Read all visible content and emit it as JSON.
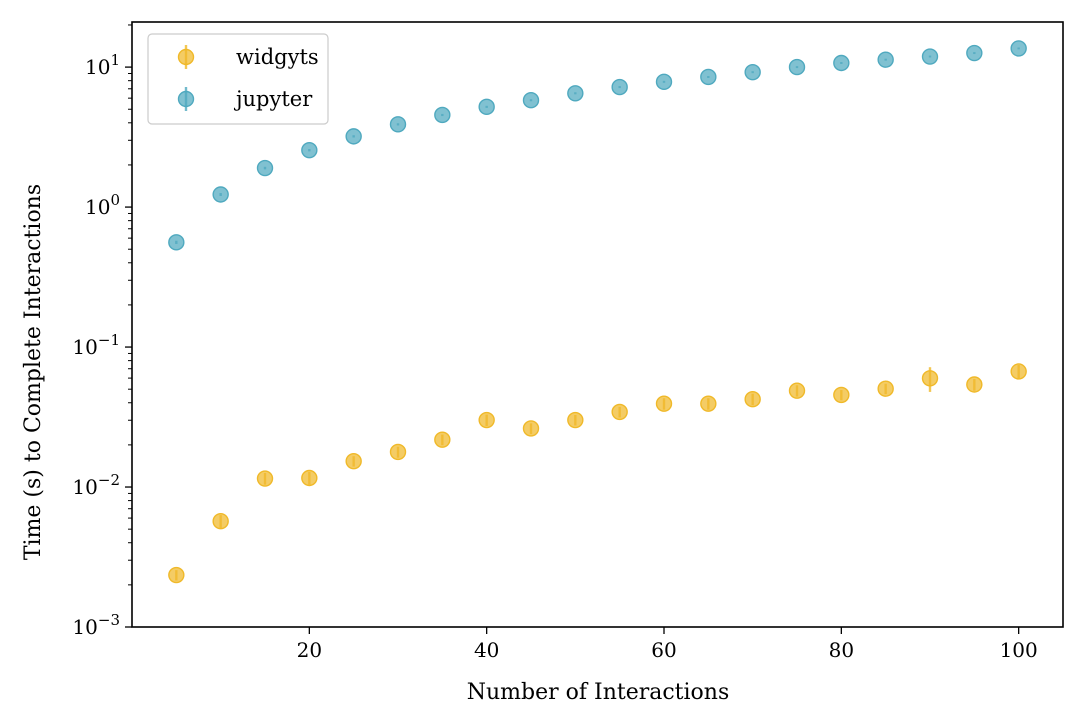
{
  "chart_data": {
    "type": "scatter",
    "title": "",
    "xlabel": "Number of Interactions",
    "ylabel": "Time (s) to Complete Interactions",
    "xlim": [
      0,
      105
    ],
    "ylim": [
      0.001,
      21
    ],
    "yscale": "log",
    "grid": false,
    "legend": "top-left",
    "x_ticks": [
      {
        "value": 20,
        "label": "20"
      },
      {
        "value": 40,
        "label": "40"
      },
      {
        "value": 60,
        "label": "60"
      },
      {
        "value": 80,
        "label": "80"
      },
      {
        "value": 100,
        "label": "100"
      }
    ],
    "y_ticks": [
      {
        "value": 0.001,
        "base": "10",
        "exp": "−3"
      },
      {
        "value": 0.01,
        "base": "10",
        "exp": "−2"
      },
      {
        "value": 0.1,
        "base": "10",
        "exp": "−1"
      },
      {
        "value": 1,
        "base": "10",
        "exp": "0"
      },
      {
        "value": 10,
        "base": "10",
        "exp": "1"
      }
    ],
    "series": [
      {
        "name": "widgyts",
        "color": "#f0b929",
        "x": [
          5,
          10,
          15,
          20,
          25,
          30,
          35,
          40,
          45,
          50,
          55,
          60,
          65,
          70,
          75,
          80,
          85,
          90,
          95,
          100
        ],
        "y": [
          0.00235,
          0.0057,
          0.0115,
          0.0116,
          0.0153,
          0.0178,
          0.0218,
          0.0301,
          0.0262,
          0.0301,
          0.0344,
          0.0394,
          0.0394,
          0.0424,
          0.0488,
          0.0455,
          0.0504,
          0.0598,
          0.054,
          0.0669
        ],
        "err": [
          0.0002,
          0.0006,
          0.0011,
          0.0012,
          0.0013,
          0.0016,
          0.0019,
          0.0028,
          0.0023,
          0.0026,
          0.003,
          0.0037,
          0.0037,
          0.004,
          0.0045,
          0.0038,
          0.0043,
          0.012,
          0.0052,
          0.0075
        ]
      },
      {
        "name": "jupyter",
        "color": "#4fa9bf",
        "x": [
          5,
          10,
          15,
          20,
          25,
          30,
          35,
          40,
          45,
          50,
          55,
          60,
          65,
          70,
          75,
          80,
          85,
          90,
          95,
          100
        ],
        "y": [
          0.56,
          1.23,
          1.9,
          2.55,
          3.2,
          3.9,
          4.55,
          5.2,
          5.8,
          6.5,
          7.2,
          7.85,
          8.5,
          9.2,
          10.0,
          10.7,
          11.3,
          11.9,
          12.6,
          13.6
        ],
        "err": [
          0.015,
          0.03,
          0.04,
          0.05,
          0.06,
          0.07,
          0.08,
          0.09,
          0.1,
          0.11,
          0.12,
          0.13,
          0.14,
          0.15,
          0.16,
          0.17,
          0.18,
          0.19,
          0.2,
          0.21
        ]
      }
    ]
  }
}
